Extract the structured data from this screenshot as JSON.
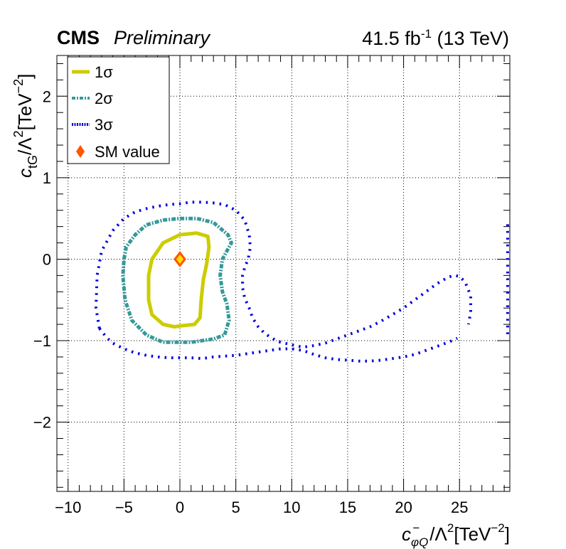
{
  "header": {
    "experiment": "CMS",
    "status": "Preliminary",
    "lumi": "41.5 fb",
    "lumi_exp": "-1",
    "energy": " (13 TeV)"
  },
  "chart_data": {
    "type": "scatter",
    "title": "",
    "xlabel": "c−φQ/Λ²[TeV⁻²]",
    "ylabel": "ctG/Λ²[TeV⁻²]",
    "xlim": [
      -11,
      29.5
    ],
    "ylim": [
      -2.85,
      2.5
    ],
    "xticks": [
      -10,
      -5,
      0,
      5,
      10,
      15,
      20,
      25
    ],
    "xtick_labels": [
      "−10",
      "−5",
      "0",
      "5",
      "10",
      "15",
      "20",
      "25"
    ],
    "yticks": [
      -2,
      -1,
      0,
      1,
      2
    ],
    "ytick_labels": [
      "−2",
      "−1",
      "0",
      "1",
      "2"
    ],
    "grid": true,
    "legend_position": "top-left",
    "series": [
      {
        "name": "1σ",
        "color": "#cccc00",
        "style": "solid",
        "closed": true,
        "points": [
          [
            0,
            -0.82
          ],
          [
            1.3,
            -0.8
          ],
          [
            1.8,
            -0.72
          ],
          [
            1.9,
            -0.5
          ],
          [
            2.1,
            -0.25
          ],
          [
            2.4,
            -0.05
          ],
          [
            2.6,
            0.15
          ],
          [
            2.5,
            0.28
          ],
          [
            1.5,
            0.32
          ],
          [
            0,
            0.3
          ],
          [
            -1.5,
            0.2
          ],
          [
            -2.5,
            0
          ],
          [
            -2.8,
            -0.2
          ],
          [
            -2.8,
            -0.5
          ],
          [
            -2.5,
            -0.68
          ],
          [
            -1.5,
            -0.8
          ],
          [
            -0.5,
            -0.83
          ],
          [
            0,
            -0.82
          ]
        ]
      },
      {
        "name": "2σ",
        "color": "#339999",
        "style": "dashed",
        "closed": true,
        "points": [
          [
            -5,
            0
          ],
          [
            -4.8,
            0.15
          ],
          [
            -4,
            0.3
          ],
          [
            -3,
            0.42
          ],
          [
            -1.5,
            0.48
          ],
          [
            0,
            0.5
          ],
          [
            1.5,
            0.5
          ],
          [
            3,
            0.45
          ],
          [
            4.3,
            0.3
          ],
          [
            4.6,
            0.2
          ],
          [
            3.8,
            0
          ],
          [
            3.6,
            -0.2
          ],
          [
            3.8,
            -0.4
          ],
          [
            4.2,
            -0.55
          ],
          [
            4.4,
            -0.75
          ],
          [
            4,
            -0.93
          ],
          [
            3,
            -0.98
          ],
          [
            1,
            -1.02
          ],
          [
            -1.5,
            -1.02
          ],
          [
            -3,
            -0.93
          ],
          [
            -4.3,
            -0.75
          ],
          [
            -4.9,
            -0.5
          ],
          [
            -5.1,
            -0.2
          ],
          [
            -5,
            0
          ]
        ]
      },
      {
        "name": "3σ",
        "color": "#0000dd",
        "style": "dotted",
        "open_paths": [
          [
            [
              -7.2,
              -0.85
            ],
            [
              -7.5,
              -0.6
            ],
            [
              -7.4,
              -0.2
            ],
            [
              -7,
              0.1
            ],
            [
              -6,
              0.35
            ],
            [
              -5,
              0.5
            ],
            [
              -4,
              0.58
            ],
            [
              -3,
              0.62
            ],
            [
              -2,
              0.65
            ],
            [
              -1,
              0.67
            ],
            [
              0,
              0.68
            ],
            [
              1,
              0.7
            ],
            [
              2,
              0.7
            ],
            [
              3,
              0.69
            ],
            [
              4,
              0.67
            ],
            [
              5,
              0.6
            ],
            [
              5.8,
              0.48
            ],
            [
              6.2,
              0.3
            ],
            [
              6.3,
              0.15
            ],
            [
              6.1,
              0
            ],
            [
              5.8,
              -0.1
            ],
            [
              5.6,
              -0.2
            ],
            [
              5.6,
              -0.35
            ],
            [
              5.8,
              -0.48
            ],
            [
              6.2,
              -0.6
            ],
            [
              6.5,
              -0.72
            ],
            [
              7,
              -0.83
            ],
            [
              7.5,
              -0.9
            ],
            [
              8,
              -0.95
            ],
            [
              8.5,
              -0.99
            ],
            [
              9,
              -1.02
            ],
            [
              10,
              -1.05
            ],
            [
              11,
              -1.08
            ],
            [
              12,
              -1.06
            ],
            [
              13,
              -1.03
            ],
            [
              14,
              -0.98
            ],
            [
              15,
              -0.93
            ],
            [
              16,
              -0.88
            ],
            [
              17,
              -0.83
            ],
            [
              18,
              -0.76
            ],
            [
              19,
              -0.68
            ],
            [
              20,
              -0.6
            ],
            [
              21,
              -0.5
            ],
            [
              22,
              -0.4
            ],
            [
              23,
              -0.3
            ],
            [
              24,
              -0.22
            ],
            [
              24.5,
              -0.2
            ],
            [
              25,
              -0.21
            ],
            [
              25.5,
              -0.28
            ],
            [
              26,
              -0.45
            ],
            [
              26,
              -0.65
            ],
            [
              25.8,
              -0.8
            ]
          ],
          [
            [
              -7.2,
              -0.85
            ],
            [
              -6.5,
              -0.97
            ],
            [
              -6,
              -1.03
            ],
            [
              -5,
              -1.1
            ],
            [
              -4,
              -1.15
            ],
            [
              -3,
              -1.18
            ],
            [
              -2,
              -1.2
            ],
            [
              -1,
              -1.21
            ],
            [
              0,
              -1.21
            ],
            [
              1,
              -1.21
            ],
            [
              2,
              -1.22
            ],
            [
              3,
              -1.2
            ],
            [
              4,
              -1.19
            ],
            [
              5,
              -1.18
            ],
            [
              6,
              -1.16
            ],
            [
              7,
              -1.14
            ],
            [
              8,
              -1.12
            ],
            [
              9,
              -1.1
            ],
            [
              10,
              -1.1
            ],
            [
              11,
              -1.12
            ],
            [
              12,
              -1.17
            ],
            [
              13,
              -1.21
            ],
            [
              14,
              -1.23
            ],
            [
              15,
              -1.24
            ],
            [
              16,
              -1.25
            ],
            [
              17,
              -1.25
            ],
            [
              18,
              -1.24
            ],
            [
              19,
              -1.22
            ],
            [
              20,
              -1.2
            ],
            [
              21,
              -1.17
            ],
            [
              22,
              -1.12
            ],
            [
              23,
              -1.07
            ],
            [
              24,
              -1.02
            ],
            [
              24.8,
              -0.97
            ]
          ],
          [
            [
              29.3,
              -0.92
            ],
            [
              29.3,
              -0.6
            ],
            [
              29.3,
              -0.3
            ],
            [
              29.3,
              0
            ],
            [
              29.3,
              0.25
            ],
            [
              29.3,
              0.45
            ]
          ]
        ]
      },
      {
        "name": "SM value",
        "color": "#ff5500",
        "marker": "diamond",
        "points": [
          [
            0,
            0
          ]
        ]
      }
    ]
  }
}
